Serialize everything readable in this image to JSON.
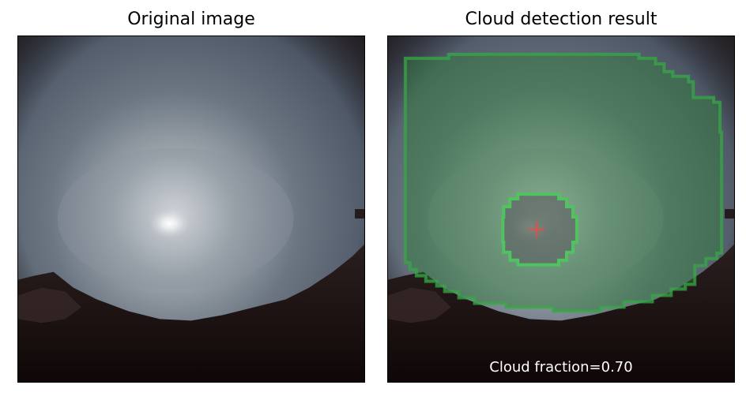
{
  "panels": [
    {
      "title": "Original image"
    },
    {
      "title": "Cloud detection result",
      "caption": "Cloud fraction=0.70"
    }
  ],
  "colors": {
    "cloud_mask_fill": "#2f7f3a",
    "cloud_mask_edge": "#35a844",
    "sun_region_edge": "#4fc35f",
    "sun_marker": "#d9534f",
    "sky": "#4b5462",
    "ground": "#1a0f0e"
  }
}
